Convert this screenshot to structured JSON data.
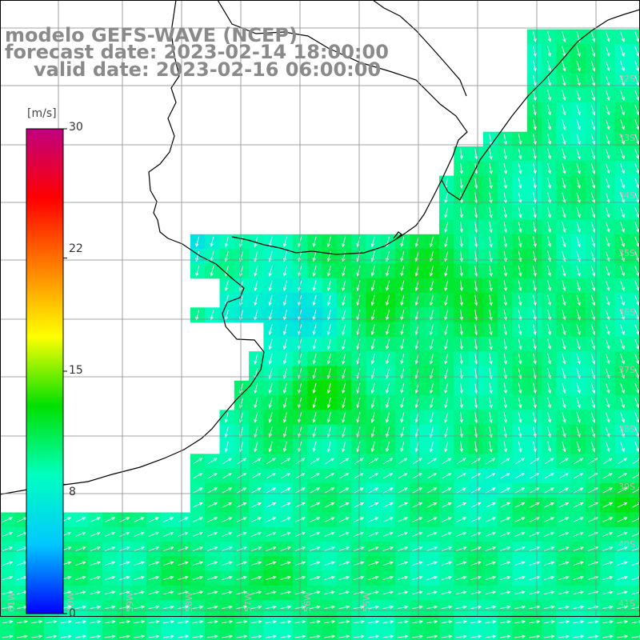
{
  "map": {
    "title_line_1": "modelo GEFS-WAVE (NCEP)",
    "title_line_2": "forecast date: 2023-02-14 18:00:00",
    "title_line_3": "valid date: 2023-02-16 06:00:00",
    "variable": "wind speed",
    "units_label": "[m/s]",
    "colorbar": {
      "min": 0,
      "max": 30,
      "ticks": [
        "30",
        "22",
        "15",
        "8",
        "0"
      ],
      "tick_values": [
        30,
        22,
        15,
        8,
        0
      ],
      "stops": [
        "#0000ff",
        "#00c8ff",
        "#00ffc0",
        "#00e000",
        "#ffff00",
        "#ff8000",
        "#ff0000",
        "#c00080"
      ]
    },
    "lat_labels": [
      "32S",
      "33S",
      "34S",
      "35S",
      "36S",
      "37S",
      "38S",
      "39S",
      "40S",
      "41S"
    ],
    "lon_labels": [
      "61W",
      "60W",
      "59W",
      "58W",
      "57W",
      "56W",
      "55W"
    ],
    "colors": {
      "land": "#ffffff",
      "coast": "#000000",
      "grid": "#888888",
      "title": "#8a8a8a",
      "arrow": "#ffffff"
    }
  }
}
